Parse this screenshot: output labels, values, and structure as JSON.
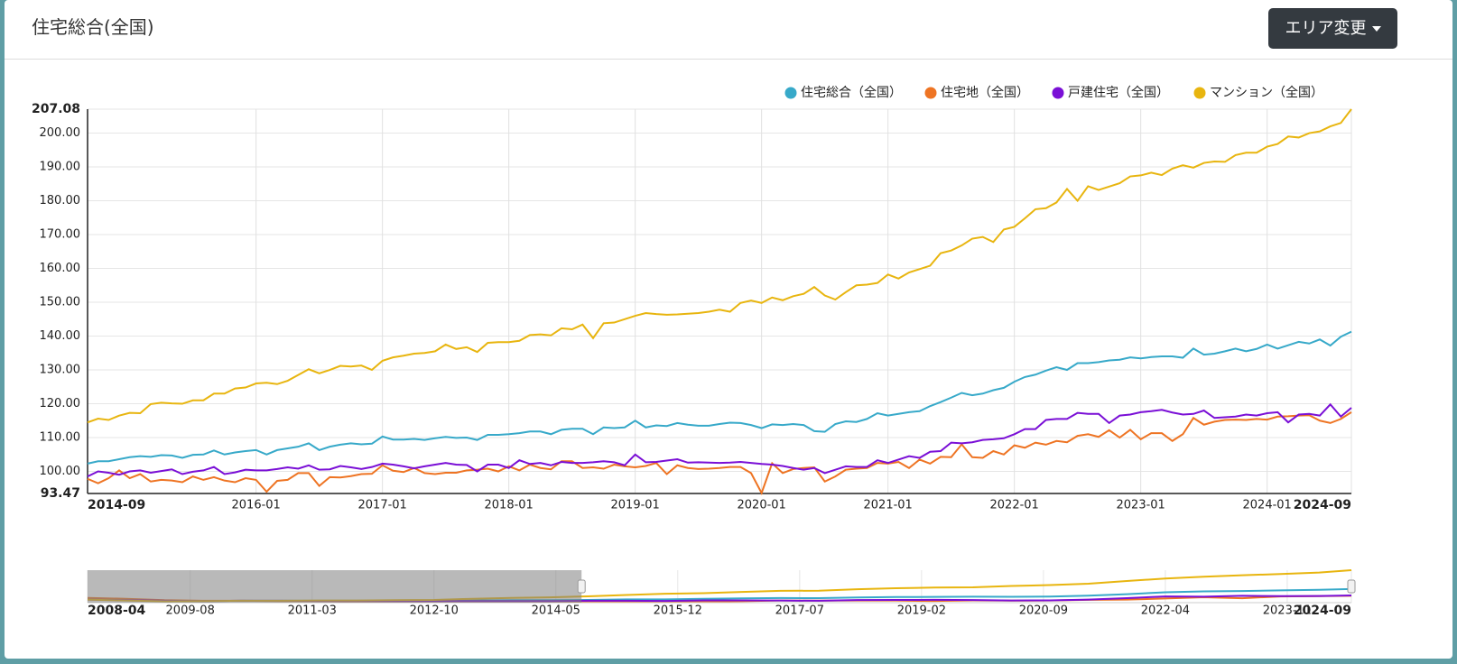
{
  "header": {
    "title": "住宅総合(全国)",
    "button": "エリア変更"
  },
  "chart_data": [
    {
      "type": "line",
      "x": [
        "2014-09",
        "2014-10",
        "2014-11",
        "2014-12",
        "2015-01",
        "2015-02",
        "2015-03",
        "2015-04",
        "2015-05",
        "2015-06",
        "2015-07",
        "2015-08",
        "2015-09",
        "2015-10",
        "2015-11",
        "2015-12",
        "2016-01",
        "2016-02",
        "2016-03",
        "2016-04",
        "2016-05",
        "2016-06",
        "2016-07",
        "2016-08",
        "2016-09",
        "2016-10",
        "2016-11",
        "2016-12",
        "2017-01",
        "2017-02",
        "2017-03",
        "2017-04",
        "2017-05",
        "2017-06",
        "2017-07",
        "2017-08",
        "2017-09",
        "2017-10",
        "2017-11",
        "2017-12",
        "2018-01",
        "2018-02",
        "2018-03",
        "2018-04",
        "2018-05",
        "2018-06",
        "2018-07",
        "2018-08",
        "2018-09",
        "2018-10",
        "2018-11",
        "2018-12",
        "2019-01",
        "2019-02",
        "2019-03",
        "2019-04",
        "2019-05",
        "2019-06",
        "2019-07",
        "2019-08",
        "2019-09",
        "2019-10",
        "2019-11",
        "2019-12",
        "2020-01",
        "2020-02",
        "2020-03",
        "2020-04",
        "2020-05",
        "2020-06",
        "2020-07",
        "2020-08",
        "2020-09",
        "2020-10",
        "2020-11",
        "2020-12",
        "2021-01",
        "2021-02",
        "2021-03",
        "2021-04",
        "2021-05",
        "2021-06",
        "2021-07",
        "2021-08",
        "2021-09",
        "2021-10",
        "2021-11",
        "2021-12",
        "2022-01",
        "2022-02",
        "2022-03",
        "2022-04",
        "2022-05",
        "2022-06",
        "2022-07",
        "2022-08",
        "2022-09",
        "2022-10",
        "2022-11",
        "2022-12",
        "2023-01",
        "2023-02",
        "2023-03",
        "2023-04",
        "2023-05",
        "2023-06",
        "2023-07",
        "2023-08",
        "2023-09",
        "2023-10",
        "2023-11",
        "2023-12",
        "2024-01",
        "2024-02",
        "2024-03",
        "2024-04",
        "2024-05",
        "2024-06",
        "2024-07",
        "2024-08",
        "2024-09"
      ],
      "xlim": [
        "2014-09",
        "2024-09"
      ],
      "xticks": [
        "2014-09",
        "2016-01",
        "2017-01",
        "2018-01",
        "2019-01",
        "2020-01",
        "2021-01",
        "2022-01",
        "2023-01",
        "2024-01",
        "2024-09"
      ],
      "ylim": [
        93.47,
        207.08
      ],
      "yticks": [
        93.47,
        {
          "value": 100,
          "label": "100.00"
        },
        {
          "value": 110,
          "label": "110.00"
        },
        {
          "value": 120,
          "label": "120.00"
        },
        {
          "value": 130,
          "label": "130.00"
        },
        {
          "value": 140,
          "label": "140.00"
        },
        {
          "value": 150,
          "label": "150.00"
        },
        {
          "value": 160,
          "label": "160.00"
        },
        {
          "value": 170,
          "label": "170.00"
        },
        {
          "value": 180,
          "label": "180.00"
        },
        {
          "value": 190,
          "label": "190.00"
        },
        {
          "value": 200,
          "label": "200.00"
        },
        207.08
      ],
      "grid": true,
      "legend": "top-right",
      "series": [
        {
          "name": "住宅総合（全国）",
          "color": "#37a9c9",
          "values": [
            102.3,
            103.0,
            103.0,
            103.6,
            104.2,
            104.5,
            104.3,
            104.8,
            104.7,
            104.0,
            104.9,
            105.0,
            106.2,
            105.0,
            105.6,
            106.0,
            106.3,
            105.0,
            106.3,
            106.8,
            107.3,
            108.3,
            106.3,
            107.3,
            107.9,
            108.3,
            108.0,
            108.2,
            110.3,
            109.4,
            109.4,
            109.6,
            109.3,
            109.8,
            110.2,
            109.9,
            110.0,
            109.3,
            110.8,
            110.8,
            111.0,
            111.3,
            111.8,
            111.8,
            111.0,
            112.3,
            112.6,
            112.6,
            111.0,
            113.0,
            112.8,
            113.0,
            115.0,
            113.0,
            113.6,
            113.4,
            114.3,
            113.8,
            113.5,
            113.5,
            114.0,
            114.4,
            114.3,
            113.7,
            112.8,
            113.9,
            113.7,
            114.0,
            113.7,
            111.9,
            111.7,
            114.0,
            114.8,
            114.6,
            115.5,
            117.2,
            116.5,
            117.0,
            117.5,
            117.8,
            119.3,
            120.5,
            121.8,
            123.2,
            122.5,
            123.0,
            124.0,
            124.7,
            126.5,
            127.9,
            128.6,
            129.8,
            130.8,
            130.0,
            132.0,
            132.0,
            132.3,
            132.8,
            133.0,
            133.7,
            133.4,
            133.8,
            134.0,
            134.0,
            133.6,
            136.3,
            134.5,
            134.8,
            135.5,
            136.3,
            135.5,
            136.2,
            137.5,
            136.3,
            137.3,
            138.3,
            137.8,
            139.0,
            137.2,
            139.8,
            141.3
          ]
        },
        {
          "name": "住宅地（全国）",
          "color": "#ee7423",
          "values": [
            97.8,
            96.5,
            98.0,
            100.3,
            98.0,
            99.2,
            97.0,
            97.5,
            97.3,
            96.8,
            98.5,
            97.5,
            98.3,
            97.3,
            96.8,
            98.0,
            97.5,
            94.0,
            97.2,
            97.5,
            99.5,
            99.5,
            95.7,
            98.3,
            98.2,
            98.6,
            99.2,
            99.3,
            101.8,
            100.2,
            99.8,
            101.0,
            99.5,
            99.2,
            99.6,
            99.6,
            100.3,
            100.5,
            100.8,
            100.0,
            101.5,
            100.3,
            102.0,
            101.0,
            100.6,
            103.0,
            103.0,
            101.0,
            101.2,
            100.8,
            102.0,
            101.5,
            101.2,
            101.6,
            102.5,
            99.2,
            101.8,
            101.0,
            100.7,
            100.8,
            101.0,
            101.3,
            101.3,
            99.5,
            93.6,
            102.4,
            99.5,
            100.7,
            101.0,
            101.2,
            97.0,
            98.5,
            100.5,
            100.8,
            101.0,
            102.5,
            102.3,
            102.8,
            101.0,
            103.5,
            102.3,
            104.3,
            104.2,
            108.0,
            104.2,
            104.0,
            106.0,
            105.0,
            107.7,
            107.0,
            108.5,
            107.9,
            109.0,
            108.6,
            110.5,
            111.0,
            110.2,
            112.2,
            110.0,
            112.3,
            109.5,
            111.3,
            111.3,
            109.0,
            111.0,
            115.8,
            113.8,
            114.7,
            115.2,
            115.3,
            115.2,
            115.5,
            115.3,
            116.2,
            116.3,
            116.5,
            116.6,
            115.0,
            114.3,
            115.5,
            117.5
          ]
        },
        {
          "name": "戸建住宅（全国）",
          "color": "#7a0fd6",
          "values": [
            98.5,
            100.0,
            99.6,
            99.0,
            100.0,
            100.3,
            99.6,
            100.1,
            100.6,
            99.2,
            99.9,
            100.3,
            101.3,
            99.2,
            99.7,
            100.5,
            100.3,
            100.3,
            100.7,
            101.2,
            100.8,
            101.8,
            100.5,
            100.6,
            101.6,
            101.2,
            100.7,
            101.3,
            102.3,
            102.0,
            101.5,
            100.9,
            101.5,
            102.0,
            102.5,
            102.0,
            101.9,
            100.0,
            102.0,
            102.0,
            101.0,
            103.3,
            102.2,
            102.5,
            101.8,
            102.8,
            102.5,
            102.5,
            102.7,
            103.0,
            102.7,
            101.8,
            105.0,
            102.7,
            102.8,
            103.2,
            103.6,
            102.6,
            102.7,
            102.6,
            102.5,
            102.6,
            102.8,
            102.5,
            102.2,
            102.0,
            101.6,
            101.0,
            100.5,
            101.0,
            99.5,
            100.5,
            101.5,
            101.3,
            101.3,
            103.3,
            102.5,
            103.5,
            104.5,
            104.0,
            105.8,
            106.0,
            108.5,
            108.3,
            108.6,
            109.3,
            109.5,
            109.8,
            111.0,
            112.5,
            112.5,
            115.2,
            115.5,
            115.5,
            117.3,
            117.0,
            117.0,
            114.3,
            116.5,
            116.8,
            117.5,
            117.8,
            118.2,
            117.4,
            116.8,
            117.0,
            118.0,
            115.8,
            116.0,
            116.2,
            116.8,
            116.5,
            117.2,
            117.5,
            114.5,
            116.8,
            117.0,
            116.5,
            119.8,
            116.2,
            118.8
          ]
        },
        {
          "name": "マンション（全国）",
          "color": "#e8b50f",
          "values": [
            114.5,
            115.6,
            115.2,
            116.5,
            117.3,
            117.2,
            119.9,
            120.3,
            120.1,
            120.0,
            121.0,
            121.0,
            123.0,
            123.0,
            124.5,
            124.8,
            126.0,
            126.2,
            125.8,
            126.8,
            128.5,
            130.2,
            129.0,
            130.0,
            131.2,
            131.0,
            131.3,
            130.0,
            132.7,
            133.7,
            134.2,
            134.8,
            135.0,
            135.5,
            137.5,
            136.2,
            136.7,
            135.3,
            138.0,
            138.2,
            138.2,
            138.6,
            140.3,
            140.5,
            140.2,
            142.3,
            142.0,
            143.4,
            139.4,
            143.8,
            144.0,
            145.0,
            146.0,
            146.8,
            146.5,
            146.3,
            146.4,
            146.6,
            146.8,
            147.2,
            147.8,
            147.2,
            149.8,
            150.5,
            149.8,
            151.4,
            150.6,
            151.8,
            152.5,
            154.5,
            152.0,
            150.8,
            153.0,
            155.0,
            155.2,
            155.7,
            158.2,
            157.0,
            158.8,
            159.8,
            160.8,
            164.5,
            165.3,
            166.8,
            168.8,
            169.3,
            167.8,
            171.5,
            172.3,
            174.8,
            177.5,
            177.8,
            179.5,
            183.5,
            180.0,
            184.3,
            183.2,
            184.2,
            185.2,
            187.2,
            187.5,
            188.3,
            187.6,
            189.5,
            190.5,
            189.8,
            191.2,
            191.6,
            191.5,
            193.5,
            194.2,
            194.2,
            196.0,
            196.8,
            199.0,
            198.7,
            200.0,
            200.5,
            202.0,
            203.0,
            207.08
          ]
        }
      ]
    },
    {
      "type": "navigator",
      "x": [
        "2008-04",
        "2008-10",
        "2009-04",
        "2009-10",
        "2010-04",
        "2010-10",
        "2011-04",
        "2011-10",
        "2012-04",
        "2012-10",
        "2013-04",
        "2013-10",
        "2014-04",
        "2014-10",
        "2015-04",
        "2015-10",
        "2016-04",
        "2016-10",
        "2017-04",
        "2017-10",
        "2018-04",
        "2018-10",
        "2019-04",
        "2019-10",
        "2020-04",
        "2020-10",
        "2021-04",
        "2021-10",
        "2022-04",
        "2022-10",
        "2023-04",
        "2023-10",
        "2024-04",
        "2024-09"
      ],
      "xlim": [
        "2008-04",
        "2024-09"
      ],
      "xticks": [
        "2008-04",
        "2009-08",
        "2011-03",
        "2012-10",
        "2014-05",
        "2015-12",
        "2017-07",
        "2019-02",
        "2020-09",
        "2022-04",
        "2023-11",
        "2024-09"
      ],
      "ylim": [
        93.47,
        207.08
      ],
      "selection": [
        "2014-09",
        "2024-09"
      ],
      "series": [
        {
          "color": "#37a9c9",
          "values": [
            105,
            103,
            100,
            99,
            100,
            100,
            100,
            100,
            100,
            100,
            101,
            102,
            102,
            103,
            104.8,
            105,
            106.8,
            108.3,
            109.6,
            109.3,
            111.8,
            113,
            113.4,
            114.4,
            114,
            114.6,
            117.8,
            123,
            129.8,
            132.8,
            134,
            136.3,
            138.3,
            141.3
          ]
        },
        {
          "color": "#ee7423",
          "values": [
            110,
            107,
            102,
            100,
            100,
            99,
            99,
            98,
            98,
            97.5,
            97.5,
            97.5,
            97.5,
            96.5,
            97.5,
            97.3,
            97.5,
            98.6,
            101,
            100.5,
            101,
            100.8,
            99.2,
            101.3,
            100.7,
            100.8,
            103.5,
            104,
            107.9,
            112.2,
            109,
            115.3,
            116.5,
            117.5
          ]
        },
        {
          "color": "#7a0fd6",
          "values": [
            104,
            102,
            100,
            99,
            100,
            100,
            99.5,
            99.5,
            99,
            99,
            99,
            99,
            99,
            100,
            100.1,
            99.2,
            101.2,
            101.2,
            100.9,
            100,
            102.5,
            103,
            103.2,
            102.6,
            101,
            101.3,
            104,
            109.3,
            115.2,
            114.3,
            117.4,
            116.2,
            116.8,
            118.8
          ]
        },
        {
          "color": "#e8b50f",
          "values": [
            104,
            101,
            98,
            99,
            100,
            100,
            101,
            101,
            102,
            103,
            107,
            110,
            112,
            115.6,
            120.3,
            124.5,
            126.8,
            131,
            134.8,
            135.3,
            140.5,
            143.8,
            146.3,
            147.2,
            151.8,
            155,
            159.8,
            169.3,
            177.8,
            184.2,
            189.5,
            193.5,
            198.7,
            207.08
          ]
        }
      ]
    }
  ]
}
